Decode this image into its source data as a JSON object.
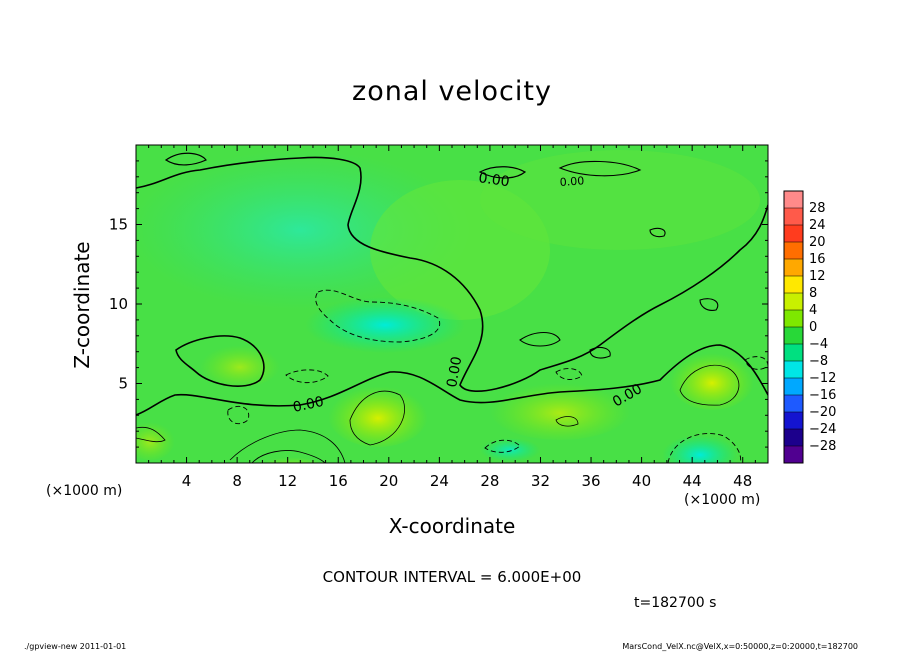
{
  "chart_data": {
    "type": "heatmap",
    "title": "zonal velocity",
    "xlabel": "X-coordinate",
    "ylabel": "Z-coordinate",
    "x_unit": "(×1000 m)",
    "y_unit": "(×1000 m)",
    "xlim": [
      0,
      50
    ],
    "ylim": [
      0,
      20
    ],
    "x_ticks": [
      4,
      8,
      12,
      16,
      20,
      24,
      28,
      32,
      36,
      40,
      44,
      48
    ],
    "y_ticks": [
      5,
      10,
      15
    ],
    "colorbar": {
      "labels": [
        "28",
        "24",
        "20",
        "16",
        "12",
        "8",
        "4",
        "0",
        "−4",
        "−8",
        "−12",
        "−16",
        "−20",
        "−24",
        "−28"
      ],
      "colors": [
        "#ff8a8a",
        "#ff5a4a",
        "#ff3c1e",
        "#ff6e00",
        "#ffa800",
        "#ffe800",
        "#c8f000",
        "#7ee800",
        "#28d838",
        "#00e080",
        "#00e6e6",
        "#00a8ff",
        "#1e5aff",
        "#1414d0",
        "#1c008c",
        "#500090"
      ]
    },
    "contour_labels": [
      "0.00",
      "0.00",
      "0.00",
      "0.00",
      "0.00"
    ],
    "notes": [
      "CONTOUR INTERVAL = 6.000E+00",
      "t=182700 s"
    ]
  },
  "footer": {
    "left": "./gpview-new   2011-01-01",
    "right": "MarsCond_VelX.nc@VelX,x=0:50000,z=0:20000,t=182700"
  }
}
